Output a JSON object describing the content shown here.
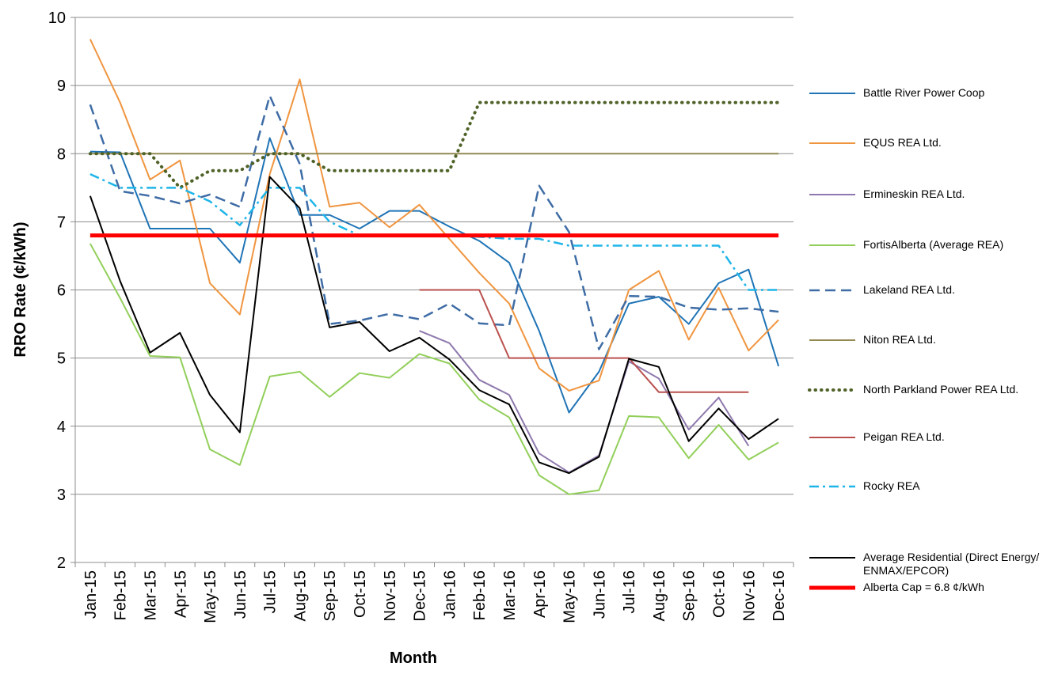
{
  "chart_data": {
    "type": "line",
    "x_label": "Month",
    "y_label": "RRO Rate (¢/kWh)",
    "categories": [
      "Jan-15",
      "Feb-15",
      "Mar-15",
      "Apr-15",
      "May-15",
      "Jun-15",
      "Jul-15",
      "Aug-15",
      "Sep-15",
      "Oct-15",
      "Nov-15",
      "Dec-15",
      "Jan-16",
      "Feb-16",
      "Mar-16",
      "Apr-16",
      "May-16",
      "Jun-16",
      "Jul-16",
      "Aug-16",
      "Sep-16",
      "Oct-16",
      "Nov-16",
      "Dec-16"
    ],
    "ylim": [
      2,
      10
    ],
    "yticks": [
      2,
      3,
      4,
      5,
      6,
      7,
      8,
      9,
      10
    ],
    "grid": true,
    "legend": "right",
    "series": [
      {
        "name": "Battle River Power Coop",
        "color": "#1f74b6",
        "dash": "solid",
        "width": 2,
        "values": [
          8.03,
          8.02,
          6.9,
          6.9,
          6.9,
          6.4,
          8.23,
          7.1,
          7.1,
          6.9,
          7.16,
          7.16,
          6.93,
          6.72,
          6.4,
          5.4,
          4.2,
          4.8,
          5.8,
          5.9,
          5.5,
          6.1,
          6.3,
          4.88
        ]
      },
      {
        "name": "EQUS REA Ltd.",
        "color": "#f0953f",
        "dash": "solid",
        "width": 2,
        "values": [
          9.68,
          8.75,
          7.62,
          7.9,
          6.1,
          5.64,
          7.7,
          9.09,
          7.22,
          7.28,
          6.92,
          7.25,
          6.75,
          6.25,
          5.8,
          4.85,
          4.52,
          4.67,
          6.0,
          6.28,
          5.27,
          6.03,
          5.11,
          5.56
        ]
      },
      {
        "name": "Ermineskin REA Ltd.",
        "color": "#8e78ad",
        "dash": "solid",
        "width": 2,
        "values": [
          null,
          null,
          null,
          null,
          null,
          null,
          null,
          null,
          null,
          null,
          null,
          5.4,
          5.22,
          4.68,
          4.46,
          3.6,
          3.32,
          3.57,
          4.95,
          4.7,
          3.95,
          4.42,
          3.71,
          null
        ]
      },
      {
        "name": "FortisAlberta (Average REA)",
        "color": "#92cf5a",
        "dash": "solid",
        "width": 2,
        "values": [
          6.68,
          5.88,
          5.03,
          5.01,
          3.66,
          3.43,
          4.73,
          4.8,
          4.43,
          4.78,
          4.71,
          5.06,
          4.92,
          4.39,
          4.13,
          3.28,
          3.0,
          3.06,
          4.15,
          4.13,
          3.53,
          4.02,
          3.51,
          3.76
        ]
      },
      {
        "name": "Lakeland REA Ltd.",
        "color": "#3e6ca5",
        "dash": "dashed",
        "width": 2.5,
        "values": [
          8.72,
          7.45,
          7.38,
          7.27,
          7.4,
          7.22,
          8.85,
          7.85,
          5.5,
          5.55,
          5.65,
          5.57,
          5.8,
          5.51,
          5.48,
          7.53,
          6.85,
          5.13,
          5.91,
          5.9,
          5.74,
          5.71,
          5.73,
          5.68
        ]
      },
      {
        "name": "Niton REA Ltd.",
        "color": "#948a54",
        "dash": "solid",
        "width": 2,
        "values": [
          8,
          8,
          8,
          8,
          8,
          8,
          8,
          8,
          8,
          8,
          8,
          8,
          8,
          8,
          8,
          8,
          8,
          8,
          8,
          8,
          8,
          8,
          8,
          8
        ]
      },
      {
        "name": "North Parkland Power REA Ltd.",
        "color": "#4f6228",
        "dash": "dotted",
        "width": 4,
        "values": [
          8.0,
          8.0,
          8.0,
          7.5,
          7.75,
          7.75,
          8.0,
          8.0,
          7.75,
          7.75,
          7.75,
          7.75,
          7.75,
          8.75,
          8.75,
          8.75,
          8.75,
          8.75,
          8.75,
          8.75,
          8.75,
          8.75,
          8.75,
          8.75
        ]
      },
      {
        "name": "Peigan REA Ltd.",
        "color": "#b9504d",
        "dash": "solid",
        "width": 2,
        "values": [
          null,
          null,
          null,
          null,
          null,
          null,
          null,
          null,
          null,
          null,
          null,
          6.0,
          6.0,
          6.0,
          5.0,
          5.0,
          5.0,
          5.0,
          5.0,
          4.5,
          4.5,
          4.5,
          4.5,
          null
        ]
      },
      {
        "name": "Rocky REA",
        "color": "#1fb5e8",
        "dash": "dashdot",
        "width": 2.5,
        "values": [
          7.7,
          7.5,
          7.5,
          7.5,
          7.3,
          6.95,
          7.5,
          7.5,
          7.0,
          6.8,
          6.8,
          6.8,
          6.8,
          6.78,
          6.75,
          6.75,
          6.65,
          6.65,
          6.65,
          6.65,
          6.65,
          6.65,
          6.0,
          6.0
        ]
      },
      {
        "name": "Average Residential (Direct Energy/ ENMAX/EPCOR)",
        "color": "#000000",
        "dash": "solid",
        "width": 2,
        "values": [
          7.38,
          6.13,
          5.08,
          5.37,
          4.46,
          3.91,
          7.66,
          7.2,
          5.45,
          5.53,
          5.1,
          5.3,
          4.98,
          4.53,
          4.32,
          3.47,
          3.31,
          3.55,
          4.99,
          4.87,
          3.78,
          4.26,
          3.81,
          4.11
        ]
      },
      {
        "name": "Alberta Cap = 6.8 ¢/kWh",
        "color": "#ff0000",
        "dash": "solid",
        "width": 5,
        "values": [
          6.8,
          6.8,
          6.8,
          6.8,
          6.8,
          6.8,
          6.8,
          6.8,
          6.8,
          6.8,
          6.8,
          6.8,
          6.8,
          6.8,
          6.8,
          6.8,
          6.8,
          6.8,
          6.8,
          6.8,
          6.8,
          6.8,
          6.8,
          6.8
        ]
      }
    ]
  }
}
